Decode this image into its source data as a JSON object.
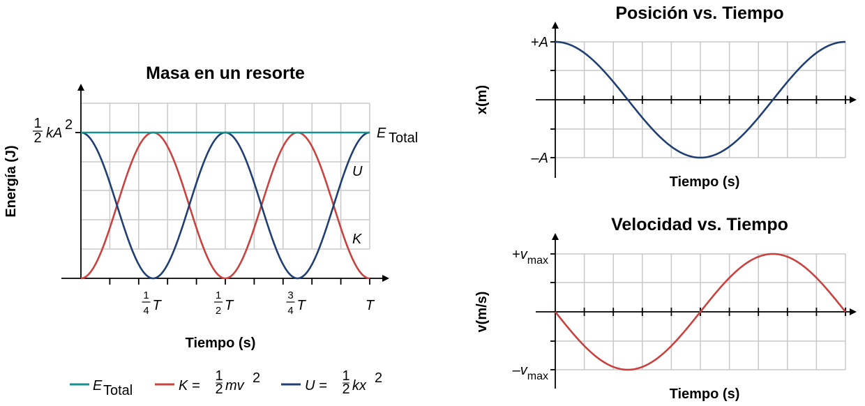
{
  "colors": {
    "total": "#15918f",
    "kinetic": "#c9423f",
    "potential": "#1f3f73",
    "position": "#1f3f73",
    "velocity": "#c9423f"
  },
  "chart_data": [
    {
      "type": "line",
      "title": "Masa en un resorte",
      "xlabel": "Tiempo (s)",
      "ylabel": "Energía (J)",
      "x_ticks": [
        {
          "num": "1",
          "den": "4",
          "sym": "T"
        },
        {
          "num": "1",
          "den": "2",
          "sym": "T"
        },
        {
          "num": "3",
          "den": "4",
          "sym": "T"
        },
        {
          "num": "",
          "den": "",
          "sym": "T"
        }
      ],
      "y_tick": {
        "num": "1",
        "den": "2",
        "expr": "kA",
        "sup": "2"
      },
      "xlim": [
        0,
        1
      ],
      "ylim": [
        0,
        1.2
      ],
      "x_units": "T",
      "y_units": "½kA²",
      "grid": true,
      "series": [
        {
          "name": "E_Total",
          "label_main": "E",
          "label_sub": "Total",
          "formula": "E = ½kA²",
          "values_fn": "1"
        },
        {
          "name": "K",
          "label_main": "K",
          "formula_lhs": "K = ",
          "formula_rhs": "mv",
          "sup": "2",
          "values_fn": "sin²(2πt/T)"
        },
        {
          "name": "U",
          "label_main": "U",
          "formula_lhs": "U = ",
          "formula_rhs": "kx",
          "sup": "2",
          "values_fn": "cos²(2πt/T)"
        }
      ],
      "legend": {
        "placement": "bottom",
        "frac_num": "1",
        "frac_den": "2"
      }
    },
    {
      "type": "line",
      "title": "Posición vs. Tiempo",
      "xlabel": "Tiempo (s)",
      "ylabel": "x(m)",
      "ylabel_var": "x",
      "ylabel_unit": "(m)",
      "y_ticks": [
        "+A",
        "–A"
      ],
      "y_tick_vars": [
        {
          "sign": "+",
          "var": "A"
        },
        {
          "sign": "–",
          "var": "A"
        }
      ],
      "ylim": [
        -1,
        1
      ],
      "xlim": [
        0,
        1
      ],
      "series": [
        {
          "values_fn": "A cos(2πt/T)"
        }
      ],
      "grid": true
    },
    {
      "type": "line",
      "title": "Velocidad vs. Tiempo",
      "xlabel": "Tiempo (s)",
      "ylabel": "v(m/s)",
      "ylabel_var": "v",
      "ylabel_unit": "(m/s)",
      "y_ticks": [
        "+vmax",
        "–vmax"
      ],
      "y_tick_vars": [
        {
          "sign": "+",
          "var": "v",
          "sub": "max"
        },
        {
          "sign": "–",
          "var": "v",
          "sub": "max"
        }
      ],
      "ylim": [
        -1,
        1
      ],
      "xlim": [
        0,
        1
      ],
      "series": [
        {
          "values_fn": "-vmax sin(2πt/T)"
        }
      ],
      "grid": true
    }
  ]
}
